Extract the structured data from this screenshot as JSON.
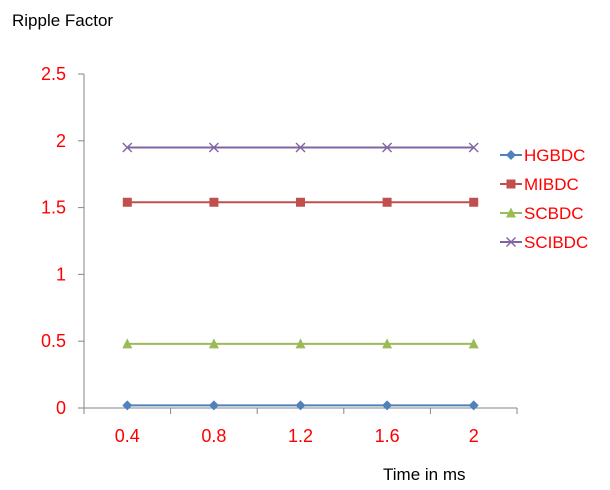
{
  "chart_data": {
    "type": "line",
    "title": "Ripple Factor",
    "xlabel": "Time in ms",
    "ylabel": "",
    "categories": [
      "0.4",
      "0.8",
      "1.2",
      "1.6",
      "2"
    ],
    "ylim": [
      0,
      2.5
    ],
    "yticks": [
      "0",
      "0.5",
      "1",
      "1.5",
      "2",
      "2.5"
    ],
    "grid": false,
    "legend_position": "right",
    "series": [
      {
        "name": "HGBDC",
        "values": [
          0.02,
          0.02,
          0.02,
          0.02,
          0.02
        ],
        "color": "#4f81bd",
        "marker": "diamond"
      },
      {
        "name": "MIBDC",
        "values": [
          1.54,
          1.54,
          1.54,
          1.54,
          1.54
        ],
        "color": "#c0504d",
        "marker": "square"
      },
      {
        "name": "SCBDC",
        "values": [
          0.48,
          0.48,
          0.48,
          0.48,
          0.48
        ],
        "color": "#9bbb59",
        "marker": "triangle"
      },
      {
        "name": "SCIBDC",
        "values": [
          1.95,
          1.95,
          1.95,
          1.95,
          1.95
        ],
        "color": "#8064a2",
        "marker": "x"
      }
    ],
    "colors": {
      "tick_labels": "#ff0000",
      "axis": "#868686",
      "title": "#000000"
    }
  }
}
